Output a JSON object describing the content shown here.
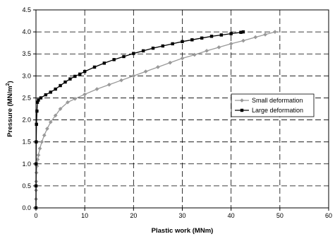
{
  "chart_data": {
    "type": "line",
    "title": "",
    "xlabel": "Plastic work (MNm)",
    "ylabel": "Pressure (MN/m",
    "ylabel_superscript": "2",
    "ylabel_close": ")",
    "xlim": [
      0,
      60
    ],
    "ylim": [
      0,
      4.5
    ],
    "x_ticks": [
      0,
      10,
      20,
      30,
      40,
      50,
      60
    ],
    "x_tick_labels": [
      "0",
      "10",
      "20",
      "30",
      "40",
      "50",
      "60"
    ],
    "y_ticks": [
      0,
      0.5,
      1,
      1.5,
      2,
      2.5,
      3,
      3.5,
      4,
      4.5
    ],
    "y_tick_labels": [
      "0.0",
      "0.5",
      "1.0",
      "1.5",
      "2.0",
      "2.5",
      "3.0",
      "3.5",
      "4.0",
      "4.5"
    ],
    "grid": "dashed",
    "legend_position": "right-middle",
    "series": [
      {
        "name": "Small deformation",
        "color": "#999999",
        "marker": "diamond",
        "x": [
          0,
          0.01,
          0.02,
          0.05,
          0.1,
          0.2,
          0.35,
          0.5,
          0.8,
          1.2,
          1.7,
          2.3,
          3,
          4,
          5,
          6.5,
          8,
          10,
          12.5,
          15,
          17.5,
          20,
          22.5,
          25,
          27.5,
          30,
          32.5,
          35,
          37.5,
          40,
          42.5,
          45,
          47,
          49
        ],
        "y": [
          0,
          0.2,
          0.4,
          0.6,
          0.8,
          0.95,
          1.1,
          1.2,
          1.35,
          1.5,
          1.65,
          1.8,
          1.95,
          2.1,
          2.25,
          2.4,
          2.48,
          2.58,
          2.7,
          2.8,
          2.9,
          3.0,
          3.1,
          3.2,
          3.3,
          3.4,
          3.48,
          3.57,
          3.65,
          3.73,
          3.8,
          3.88,
          3.94,
          4.0
        ]
      },
      {
        "name": "Large deformation",
        "color": "#000000",
        "marker": "square",
        "x": [
          0,
          0.01,
          0.02,
          0.05,
          0.1,
          0.2,
          0.3,
          0.5,
          1,
          2,
          3,
          4,
          5,
          6,
          7,
          8,
          9,
          10,
          12,
          14,
          16,
          18,
          20,
          22,
          24,
          26,
          28,
          30,
          32,
          34,
          36,
          38,
          40,
          42,
          42.5
        ],
        "y": [
          0,
          0.5,
          1.0,
          1.5,
          1.9,
          2.2,
          2.4,
          2.45,
          2.5,
          2.57,
          2.63,
          2.7,
          2.78,
          2.86,
          2.93,
          2.99,
          3.04,
          3.1,
          3.2,
          3.29,
          3.37,
          3.44,
          3.51,
          3.57,
          3.63,
          3.68,
          3.73,
          3.78,
          3.82,
          3.86,
          3.9,
          3.93,
          3.96,
          3.99,
          4.0
        ]
      }
    ]
  }
}
